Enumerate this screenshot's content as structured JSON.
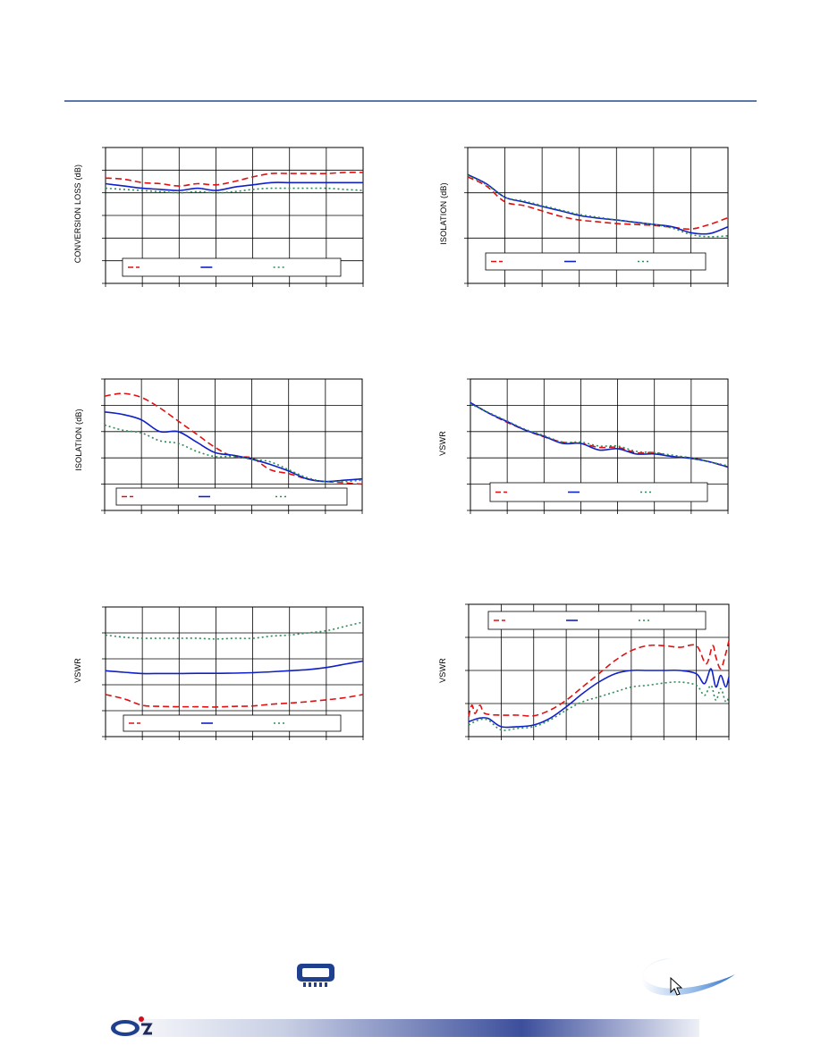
{
  "colors": {
    "rule": "#5a78a8",
    "series_red": "#e01010",
    "series_blue": "#1020c8",
    "series_green": "#2e8b57",
    "grid": "#000000"
  },
  "icons": [
    "chip-icon",
    "brand-swoosh-icon",
    "cursor-arrow-icon",
    "company-logo-icon"
  ],
  "chart_data": [
    {
      "id": "c1",
      "type": "line",
      "title": "",
      "xlabel": "",
      "ylabel": "CONVERSION LOSS (dB)",
      "xlim": [
        0,
        7
      ],
      "ylim": [
        0,
        6
      ],
      "grid": true,
      "legend": "bottom",
      "series": [
        {
          "color": "red",
          "style": "dashed",
          "x": [
            0,
            0.5,
            1,
            1.5,
            2,
            2.5,
            3,
            3.5,
            4,
            4.5,
            5,
            5.5,
            6,
            6.5,
            7
          ],
          "y": [
            4.65,
            4.6,
            4.45,
            4.4,
            4.3,
            4.4,
            4.35,
            4.5,
            4.7,
            4.85,
            4.85,
            4.85,
            4.85,
            4.9,
            4.9
          ]
        },
        {
          "color": "blue",
          "style": "solid",
          "x": [
            0,
            0.5,
            1,
            1.5,
            2,
            2.5,
            3,
            3.5,
            4,
            4.5,
            5,
            5.5,
            6,
            6.5,
            7
          ],
          "y": [
            4.4,
            4.3,
            4.2,
            4.15,
            4.1,
            4.2,
            4.1,
            4.25,
            4.35,
            4.45,
            4.45,
            4.45,
            4.45,
            4.45,
            4.45
          ]
        },
        {
          "color": "green",
          "style": "dotted",
          "x": [
            0,
            0.5,
            1,
            1.5,
            2,
            2.5,
            3,
            3.5,
            4,
            4.5,
            5,
            5.5,
            6,
            6.5,
            7
          ],
          "y": [
            4.2,
            4.15,
            4.1,
            4.05,
            4.0,
            4.05,
            4.0,
            4.05,
            4.15,
            4.2,
            4.2,
            4.2,
            4.2,
            4.15,
            4.1
          ]
        }
      ]
    },
    {
      "id": "c2",
      "type": "line",
      "title": "",
      "xlabel": "",
      "ylabel": "ISOLATION (dB)",
      "xlim": [
        0,
        7
      ],
      "ylim": [
        0,
        3
      ],
      "grid": true,
      "legend": "bottom",
      "series": [
        {
          "color": "red",
          "style": "dashed",
          "x": [
            0,
            0.5,
            1,
            1.5,
            2,
            2.5,
            3,
            3.5,
            4,
            4.5,
            5,
            5.5,
            6,
            6.5,
            7
          ],
          "y": [
            2.35,
            2.15,
            1.8,
            1.72,
            1.6,
            1.48,
            1.4,
            1.36,
            1.32,
            1.3,
            1.28,
            1.24,
            1.2,
            1.3,
            1.45
          ]
        },
        {
          "color": "blue",
          "style": "solid",
          "x": [
            0,
            0.5,
            1,
            1.5,
            2,
            2.5,
            3,
            3.5,
            4,
            4.5,
            5,
            5.5,
            6,
            6.5,
            7
          ],
          "y": [
            2.4,
            2.2,
            1.9,
            1.8,
            1.7,
            1.6,
            1.5,
            1.44,
            1.4,
            1.35,
            1.3,
            1.25,
            1.12,
            1.1,
            1.25
          ]
        },
        {
          "color": "green",
          "style": "dotted",
          "x": [
            0,
            0.5,
            1,
            1.5,
            2,
            2.5,
            3,
            3.5,
            4,
            4.5,
            5,
            5.5,
            6,
            6.5,
            7
          ],
          "y": [
            2.38,
            2.18,
            1.9,
            1.82,
            1.72,
            1.62,
            1.52,
            1.46,
            1.4,
            1.34,
            1.3,
            1.22,
            1.08,
            1.03,
            1.05
          ]
        }
      ]
    },
    {
      "id": "c3",
      "type": "line",
      "title": "",
      "xlabel": "",
      "ylabel": "ISOLATION (dB)",
      "xlim": [
        0,
        7
      ],
      "ylim": [
        0,
        5
      ],
      "grid": true,
      "legend": "bottom",
      "series": [
        {
          "color": "red",
          "style": "dashed",
          "x": [
            0,
            0.5,
            1,
            1.5,
            2,
            2.5,
            3,
            3.5,
            4,
            4.5,
            5,
            5.5,
            6,
            6.5,
            7
          ],
          "y": [
            4.35,
            4.45,
            4.3,
            3.9,
            3.4,
            2.9,
            2.4,
            2.05,
            2.0,
            1.55,
            1.4,
            1.2,
            1.1,
            1.05,
            1.0
          ]
        },
        {
          "color": "blue",
          "style": "solid",
          "x": [
            0,
            0.5,
            1,
            1.5,
            2,
            2.5,
            3,
            3.5,
            4,
            4.5,
            5,
            5.5,
            6,
            6.5,
            7
          ],
          "y": [
            3.75,
            3.65,
            3.45,
            3.0,
            3.0,
            2.6,
            2.2,
            2.1,
            1.95,
            1.75,
            1.5,
            1.2,
            1.1,
            1.15,
            1.2
          ]
        },
        {
          "color": "green",
          "style": "dotted",
          "x": [
            0,
            0.5,
            1,
            1.5,
            2,
            2.5,
            3,
            3.5,
            4,
            4.5,
            5,
            5.5,
            6,
            6.5,
            7
          ],
          "y": [
            3.25,
            3.05,
            2.95,
            2.65,
            2.55,
            2.25,
            2.05,
            2.05,
            1.95,
            1.85,
            1.55,
            1.25,
            1.1,
            1.1,
            1.15
          ]
        }
      ]
    },
    {
      "id": "c4",
      "type": "line",
      "title": "",
      "xlabel": "",
      "ylabel": "VSWR",
      "xlim": [
        0,
        7
      ],
      "ylim": [
        0,
        5
      ],
      "grid": true,
      "legend": "bottom",
      "series": [
        {
          "color": "red",
          "style": "dashed",
          "x": [
            0,
            0.5,
            1,
            1.5,
            2,
            2.5,
            3,
            3.5,
            4,
            4.5,
            5,
            5.5,
            6,
            6.5,
            7
          ],
          "y": [
            4.1,
            3.7,
            3.35,
            3.05,
            2.8,
            2.6,
            2.55,
            2.4,
            2.4,
            2.2,
            2.2,
            2.05,
            2.0,
            1.85,
            1.65
          ]
        },
        {
          "color": "blue",
          "style": "solid",
          "x": [
            0,
            0.5,
            1,
            1.5,
            2,
            2.5,
            3,
            3.5,
            4,
            4.5,
            5,
            5.5,
            6,
            6.5,
            7
          ],
          "y": [
            4.1,
            3.7,
            3.38,
            3.05,
            2.82,
            2.55,
            2.55,
            2.3,
            2.35,
            2.15,
            2.15,
            2.05,
            1.98,
            1.85,
            1.65
          ]
        },
        {
          "color": "green",
          "style": "dotted",
          "x": [
            0,
            0.5,
            1,
            1.5,
            2,
            2.5,
            3,
            3.5,
            4,
            4.5,
            5,
            5.5,
            6,
            6.5,
            7
          ],
          "y": [
            4.05,
            3.72,
            3.4,
            3.08,
            2.85,
            2.6,
            2.6,
            2.45,
            2.45,
            2.25,
            2.2,
            2.1,
            2.0,
            1.85,
            1.7
          ]
        }
      ]
    },
    {
      "id": "c5",
      "type": "line",
      "title": "",
      "xlabel": "",
      "ylabel": "VSWR",
      "xlim": [
        0,
        7
      ],
      "ylim": [
        0,
        6
      ],
      "grid": true,
      "legend": "bottom",
      "series": [
        {
          "color": "red",
          "style": "dashed",
          "x": [
            0,
            0.5,
            1,
            1.5,
            2,
            2.5,
            3,
            3.5,
            4,
            4.5,
            5,
            5.5,
            6,
            6.5,
            7
          ],
          "y": [
            1.95,
            1.75,
            1.45,
            1.4,
            1.38,
            1.38,
            1.37,
            1.4,
            1.42,
            1.5,
            1.55,
            1.62,
            1.7,
            1.8,
            1.95
          ]
        },
        {
          "color": "blue",
          "style": "solid",
          "x": [
            0,
            0.5,
            1,
            1.5,
            2,
            2.5,
            3,
            3.5,
            4,
            4.5,
            5,
            5.5,
            6,
            6.5,
            7
          ],
          "y": [
            3.05,
            2.98,
            2.92,
            2.92,
            2.92,
            2.93,
            2.93,
            2.94,
            2.96,
            3.0,
            3.05,
            3.1,
            3.2,
            3.35,
            3.5
          ]
        },
        {
          "color": "green",
          "style": "dotted",
          "x": [
            0,
            0.5,
            1,
            1.5,
            2,
            2.5,
            3,
            3.5,
            4,
            4.5,
            5,
            5.5,
            6,
            6.5,
            7
          ],
          "y": [
            4.7,
            4.6,
            4.55,
            4.55,
            4.55,
            4.55,
            4.52,
            4.55,
            4.55,
            4.65,
            4.7,
            4.8,
            4.9,
            5.1,
            5.3
          ]
        }
      ]
    },
    {
      "id": "c6",
      "type": "line",
      "title": "",
      "xlabel": "",
      "ylabel": "VSWR",
      "xlim": [
        0,
        8
      ],
      "ylim": [
        0,
        4
      ],
      "grid": true,
      "legend": "top",
      "series": [
        {
          "color": "red",
          "style": "dashed",
          "x": [
            0,
            0.1,
            0.2,
            0.35,
            0.5,
            1,
            1.5,
            2,
            2.5,
            3,
            3.5,
            4,
            4.5,
            5,
            5.5,
            6,
            6.5,
            7,
            7.3,
            7.5,
            7.6,
            7.75,
            7.9,
            8
          ],
          "y": [
            0.6,
            0.95,
            0.7,
            0.95,
            0.7,
            0.65,
            0.65,
            0.63,
            0.8,
            1.1,
            1.5,
            1.9,
            2.3,
            2.6,
            2.75,
            2.75,
            2.7,
            2.75,
            2.2,
            2.75,
            2.4,
            2.05,
            2.5,
            2.9
          ]
        },
        {
          "color": "blue",
          "style": "solid",
          "x": [
            0,
            0.3,
            0.6,
            1,
            1.5,
            2,
            2.5,
            3,
            3.5,
            4,
            4.5,
            5,
            5.5,
            6,
            6.5,
            7,
            7.25,
            7.45,
            7.6,
            7.75,
            7.9,
            8
          ],
          "y": [
            0.45,
            0.55,
            0.55,
            0.3,
            0.3,
            0.35,
            0.55,
            0.9,
            1.3,
            1.65,
            1.9,
            2.0,
            2.0,
            2.0,
            2.0,
            1.9,
            1.6,
            2.05,
            1.5,
            1.85,
            1.5,
            1.8
          ]
        },
        {
          "color": "green",
          "style": "dotted",
          "x": [
            0,
            0.3,
            0.6,
            1,
            1.5,
            2,
            2.5,
            3,
            3.5,
            4,
            4.5,
            5,
            5.5,
            6,
            6.5,
            7,
            7.25,
            7.45,
            7.6,
            7.75,
            7.9,
            8
          ],
          "y": [
            0.35,
            0.5,
            0.5,
            0.2,
            0.25,
            0.3,
            0.5,
            0.8,
            1.05,
            1.2,
            1.35,
            1.5,
            1.55,
            1.62,
            1.65,
            1.55,
            1.25,
            1.55,
            1.1,
            1.45,
            1.05,
            1.2
          ]
        }
      ]
    }
  ]
}
